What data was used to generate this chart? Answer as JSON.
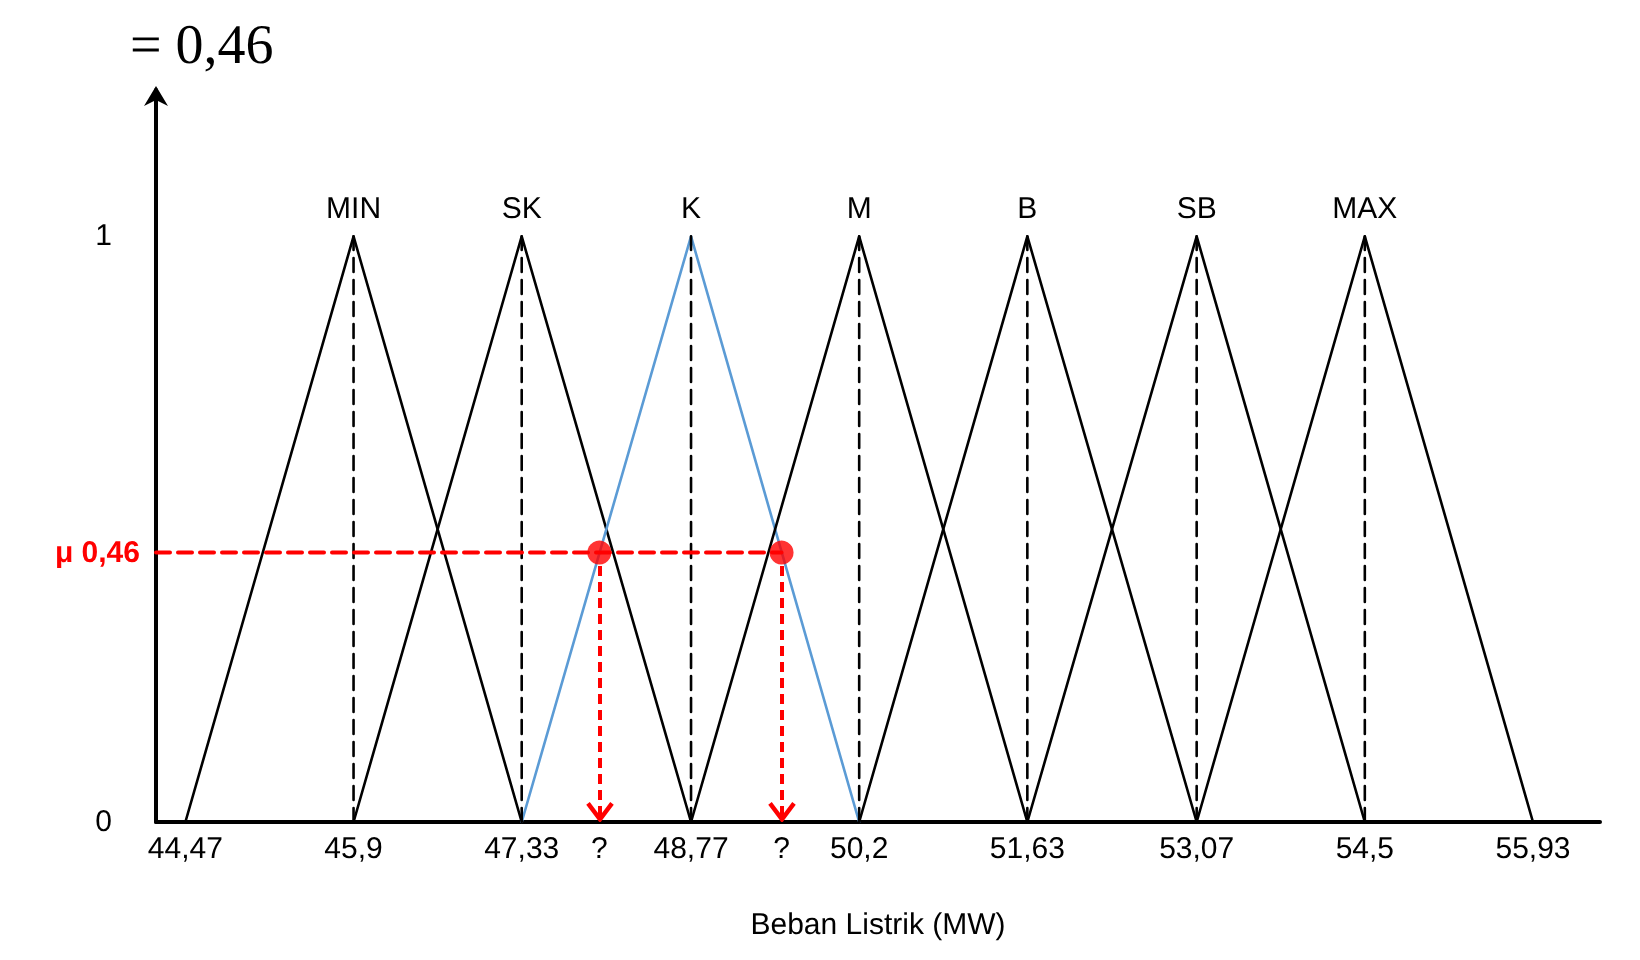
{
  "chart_data": {
    "type": "line",
    "title": "= 0,46",
    "xlabel": "Beban Listrik (MW)",
    "xlim": [
      44.22,
      56.5
    ],
    "ylim": [
      0,
      1.25
    ],
    "xticks": [
      {
        "value": 44.47,
        "label": "44,47"
      },
      {
        "value": 45.9,
        "label": "45,9"
      },
      {
        "value": 47.33,
        "label": "47,33"
      },
      {
        "value": 47.99,
        "label": "?"
      },
      {
        "value": 48.77,
        "label": "48,77"
      },
      {
        "value": 49.54,
        "label": "?"
      },
      {
        "value": 50.2,
        "label": "50,2"
      },
      {
        "value": 51.63,
        "label": "51,63"
      },
      {
        "value": 53.07,
        "label": "53,07"
      },
      {
        "value": 54.5,
        "label": "54,5"
      },
      {
        "value": 55.93,
        "label": "55,93"
      }
    ],
    "yticks": [
      0,
      1
    ],
    "grid": false,
    "legend": false,
    "annotations": [
      {
        "text": "μ 0,46",
        "x": 44.22,
        "y": 0.46
      }
    ],
    "series": [
      {
        "name": "MIN",
        "color": "#000000",
        "x": [
          44.47,
          45.9,
          47.33
        ],
        "values": [
          0,
          1,
          0
        ],
        "marker": "none",
        "line_style": "solid"
      },
      {
        "name": "SK",
        "color": "#000000",
        "x": [
          45.9,
          47.33,
          48.77
        ],
        "values": [
          0,
          1,
          0
        ],
        "marker": "none",
        "line_style": "solid"
      },
      {
        "name": "K",
        "color": "#5b9bd5",
        "x": [
          47.33,
          48.77,
          50.2
        ],
        "values": [
          0,
          1,
          0
        ],
        "marker": "none",
        "line_style": "solid"
      },
      {
        "name": "M",
        "color": "#000000",
        "x": [
          48.77,
          50.2,
          51.63
        ],
        "values": [
          0,
          1,
          0
        ],
        "marker": "none",
        "line_style": "solid"
      },
      {
        "name": "B",
        "color": "#000000",
        "x": [
          50.2,
          51.63,
          53.07
        ],
        "values": [
          0,
          1,
          0
        ],
        "marker": "none",
        "line_style": "solid"
      },
      {
        "name": "SB",
        "color": "#000000",
        "x": [
          51.63,
          53.07,
          54.5
        ],
        "values": [
          0,
          1,
          0
        ],
        "marker": "none",
        "line_style": "solid"
      },
      {
        "name": "MAX",
        "color": "#000000",
        "x": [
          53.07,
          54.5,
          55.93
        ],
        "values": [
          0,
          1,
          0
        ],
        "marker": "none",
        "line_style": "solid"
      },
      {
        "color": "#000000",
        "x": [
          45.9,
          45.9
        ],
        "values": [
          0,
          1
        ],
        "marker": "none",
        "line_style": "dashed"
      },
      {
        "color": "#000000",
        "x": [
          47.33,
          47.33
        ],
        "values": [
          0,
          1
        ],
        "marker": "none",
        "line_style": "dashed"
      },
      {
        "color": "#000000",
        "x": [
          48.77,
          48.77
        ],
        "values": [
          0,
          1
        ],
        "marker": "none",
        "line_style": "dashed"
      },
      {
        "color": "#000000",
        "x": [
          50.2,
          50.2
        ],
        "values": [
          0,
          1
        ],
        "marker": "none",
        "line_style": "dashed"
      },
      {
        "color": "#000000",
        "x": [
          51.63,
          51.63
        ],
        "values": [
          0,
          1
        ],
        "marker": "none",
        "line_style": "dashed"
      },
      {
        "color": "#000000",
        "x": [
          53.07,
          53.07
        ],
        "values": [
          0,
          1
        ],
        "marker": "none",
        "line_style": "dashed"
      },
      {
        "color": "#000000",
        "x": [
          54.5,
          54.5
        ],
        "values": [
          0,
          1
        ],
        "marker": "none",
        "line_style": "dashed"
      },
      {
        "color": "#ff0000",
        "x": [
          44.22,
          49.54
        ],
        "values": [
          0.46,
          0.46
        ],
        "marker": "none",
        "line_style": "dashed"
      },
      {
        "type": "scatter",
        "color": "#ff0000",
        "x": [
          47.99,
          49.54
        ],
        "values": [
          0.46,
          0.46
        ],
        "marker": "circle"
      }
    ]
  }
}
